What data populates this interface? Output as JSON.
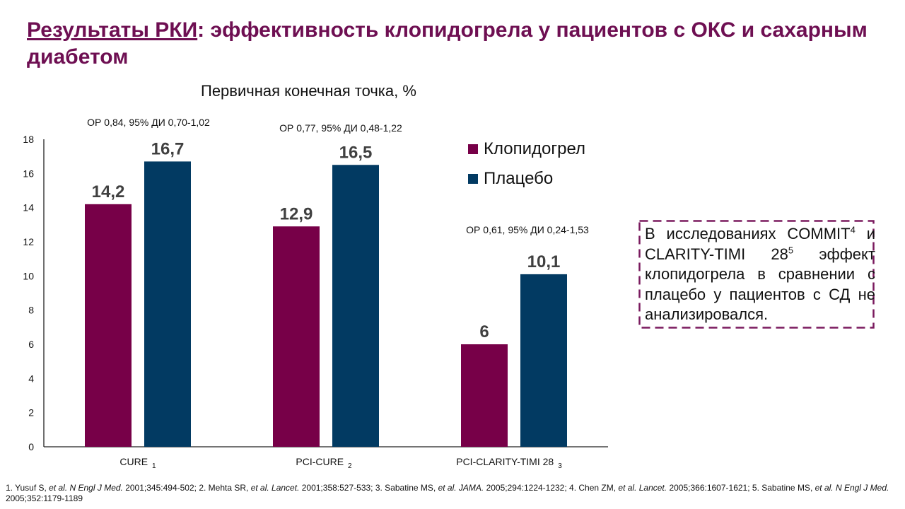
{
  "slide": {
    "title_underlined": "Результаты РКИ",
    "title_rest": ": эффективность клопидогрела у пациентов с ОКС и сахарным диабетом",
    "note": {
      "line1_pre": "В исследованиях COMMIT",
      "sup1": "4",
      "line1_post": " и CLARITY-TIMI 28",
      "sup2": "5",
      "rest": " эффект клопидогрела в сравнении с плацебо у пациентов с СД не анализировался."
    },
    "references": [
      {
        "pre": "1. Yusuf S, ",
        "it": "et al. N Engl J Med.",
        "post": " 2001;345:494-502; "
      },
      {
        "pre": "2. Mehta SR, ",
        "it": "et al. Lancet.",
        "post": " 2001;358:527-533; "
      },
      {
        "pre": "3. Sabatine MS, ",
        "it": "et al. JAMA.",
        "post": " 2005;294:1224-1232; "
      },
      {
        "pre": "4. Chen ZM, ",
        "it": "et al. Lancet.",
        "post": " 2005;366:1607-1621; "
      },
      {
        "pre": "5. Sabatine MS, ",
        "it": "et al. N Engl J Med.",
        "post": " 2005;352:1179-1189"
      }
    ],
    "colors": {
      "title": "#6e0f52",
      "clopidogrel": "#770048",
      "placebo": "#023a62",
      "note_border": "#7a1a5e"
    }
  },
  "chart_data": {
    "type": "bar",
    "title": "Первичная конечная точка, %",
    "xlabel": "",
    "ylabel": "",
    "ylim": [
      0,
      18
    ],
    "yticks": [
      "0",
      "2",
      "4",
      "6",
      "8",
      "10",
      "12",
      "14",
      "16",
      "18"
    ],
    "grid": false,
    "legend_position": "top-right",
    "categories": [
      {
        "label": "CURE",
        "sub": "1"
      },
      {
        "label": "PCI-CURE",
        "sub": "2"
      },
      {
        "label": "PCI-CLARITY-TIMI 28",
        "sub": "3"
      }
    ],
    "series": [
      {
        "name": "Клопидогрел",
        "values": [
          14.2,
          12.9,
          6
        ],
        "labels": [
          "14,2",
          "12,9",
          "6"
        ]
      },
      {
        "name": "Плацебо",
        "values": [
          16.7,
          16.5,
          10.1
        ],
        "labels": [
          "16,7",
          "16,5",
          "10,1"
        ]
      }
    ],
    "annotations": [
      "ОР 0,84, 95% ДИ 0,70-1,02",
      "ОР 0,77, 95% ДИ 0,48-1,22",
      "ОР 0,61, 95% ДИ 0,24-1,53"
    ]
  }
}
